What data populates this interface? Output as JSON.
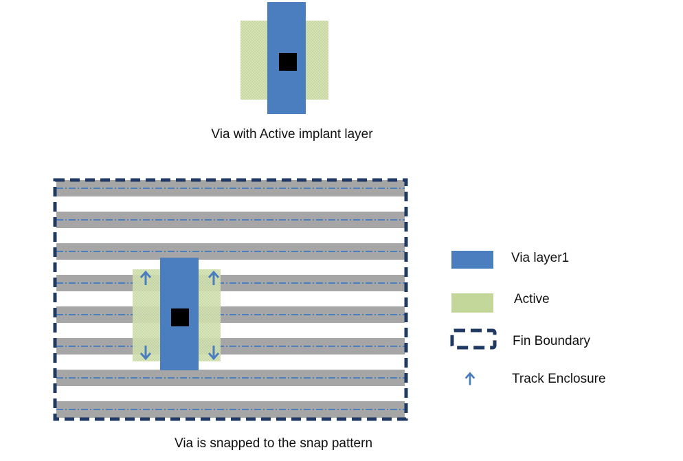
{
  "captions": {
    "top": "Via with Active implant layer",
    "bottom": "Via is snapped to the snap pattern"
  },
  "legend": {
    "via": {
      "label": "Via layer1",
      "color": "#4a7ebf"
    },
    "active": {
      "label": "Active",
      "color": "#c4d79b"
    },
    "fin_boundary": {
      "label": "Fin Boundary",
      "color": "#1f3864"
    },
    "track_enclosure": {
      "label": "Track Enclosure",
      "color": "#4a7ebf"
    }
  },
  "colors": {
    "via": "#4a7ebf",
    "active_fill": "#d5e2b6",
    "active_dot": "#b8cc8a",
    "contact": "#000000",
    "fin": "#a6a6a6",
    "track_line": "#4a7ebf",
    "boundary": "#1f3864"
  },
  "snap_pattern": {
    "fin_count": 8
  }
}
